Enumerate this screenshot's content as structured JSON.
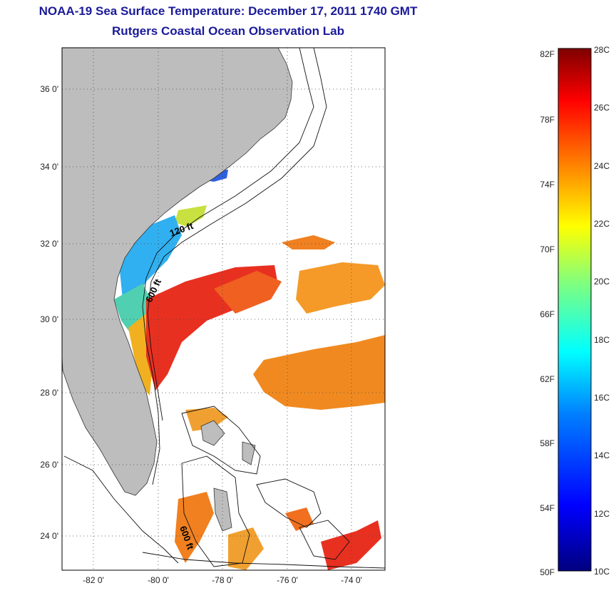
{
  "header": {
    "title": "NOAA-19 Sea Surface Temperature:  December 17, 2011 1740 GMT",
    "subtitle": "Rutgers Coastal Ocean Observation Lab"
  },
  "map": {
    "y_ticks": [
      "36 0'",
      "34 0'",
      "32 0'",
      "30 0'",
      "28 0'",
      "26 0'",
      "24 0'"
    ],
    "x_ticks": [
      "-82 0'",
      "-80 0'",
      "-78 0'",
      "-76 0'",
      "-74 0'"
    ],
    "isobath_labels": [
      "120 ft",
      "600 ft",
      "600 ft"
    ],
    "land_color": "#bdbdbd",
    "grid": "dotted"
  },
  "colorbar": {
    "fahrenheit_labels": [
      "82F",
      "78F",
      "74F",
      "70F",
      "66F",
      "62F",
      "58F",
      "54F",
      "50F"
    ],
    "celsius_labels": [
      "28C",
      "26C",
      "24C",
      "22C",
      "20C",
      "18C",
      "16C",
      "14C",
      "12C",
      "10C"
    ],
    "scale_colors": [
      "#00007f",
      "#0000ff",
      "#007fff",
      "#00ffff",
      "#7fff7f",
      "#ffff00",
      "#ff7f00",
      "#ff0000",
      "#7f0000"
    ]
  }
}
